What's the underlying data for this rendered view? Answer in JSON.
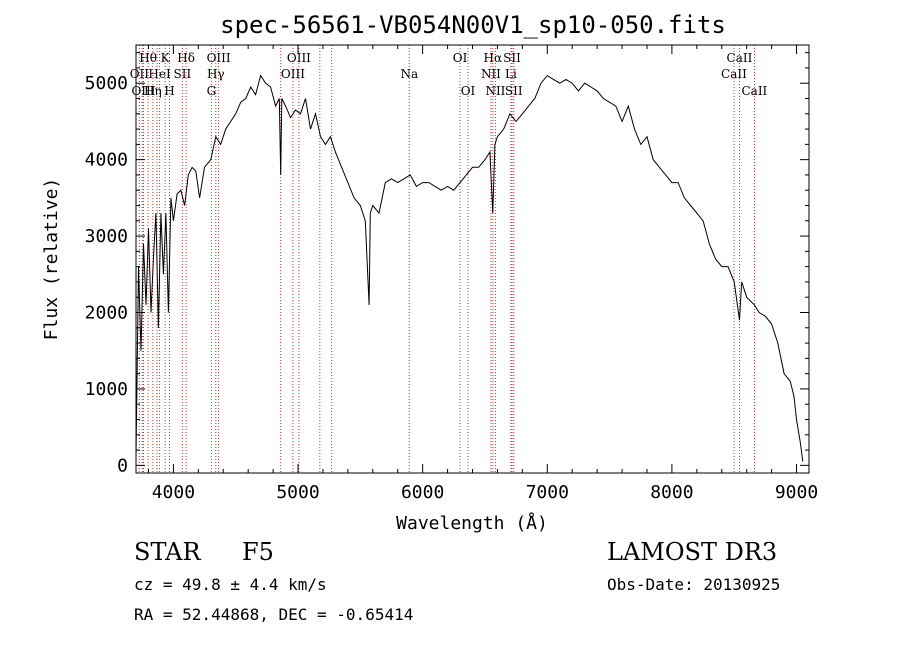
{
  "chart_data": {
    "type": "line",
    "title": "spec-56561-VB054N00V1_sp10-050.fits",
    "xlabel": "Wavelength (Å)",
    "ylabel": "Flux (relative)",
    "xlim": [
      3700,
      9100
    ],
    "ylim": [
      -100,
      5500
    ],
    "xticks": [
      4000,
      5000,
      6000,
      7000,
      8000,
      9000
    ],
    "yticks": [
      0,
      1000,
      2000,
      3000,
      4000,
      5000
    ],
    "series": [
      {
        "name": "flux",
        "x": [
          3700,
          3720,
          3740,
          3760,
          3780,
          3800,
          3820,
          3840,
          3860,
          3880,
          3900,
          3920,
          3940,
          3960,
          3980,
          4000,
          4030,
          4060,
          4090,
          4120,
          4150,
          4180,
          4210,
          4250,
          4300,
          4340,
          4380,
          4420,
          4460,
          4500,
          4540,
          4580,
          4620,
          4660,
          4700,
          4740,
          4780,
          4820,
          4850,
          4861,
          4870,
          4900,
          4940,
          4980,
          5020,
          5060,
          5100,
          5140,
          5180,
          5220,
          5260,
          5300,
          5350,
          5400,
          5450,
          5500,
          5540,
          5570,
          5580,
          5600,
          5650,
          5700,
          5750,
          5800,
          5850,
          5900,
          5950,
          6000,
          6050,
          6100,
          6150,
          6200,
          6250,
          6300,
          6350,
          6400,
          6450,
          6500,
          6540,
          6563,
          6580,
          6600,
          6650,
          6700,
          6750,
          6800,
          6850,
          6900,
          6950,
          7000,
          7050,
          7100,
          7150,
          7200,
          7250,
          7300,
          7350,
          7400,
          7450,
          7500,
          7550,
          7600,
          7650,
          7700,
          7750,
          7800,
          7850,
          7900,
          7950,
          8000,
          8050,
          8100,
          8150,
          8200,
          8250,
          8300,
          8350,
          8400,
          8450,
          8500,
          8542,
          8560,
          8600,
          8662,
          8700,
          8750,
          8800,
          8850,
          8900,
          8950,
          8980,
          9000,
          9030,
          9050
        ],
        "y": [
          100,
          2600,
          1500,
          2900,
          2100,
          3100,
          2000,
          2700,
          3300,
          1800,
          3300,
          2500,
          3300,
          2000,
          3500,
          3200,
          3550,
          3600,
          3400,
          3800,
          3900,
          3850,
          3500,
          3900,
          4000,
          4300,
          4200,
          4400,
          4500,
          4600,
          4750,
          4800,
          4950,
          4850,
          5100,
          5000,
          4950,
          4700,
          4800,
          3800,
          4800,
          4700,
          4550,
          4650,
          4600,
          4800,
          4400,
          4600,
          4300,
          4200,
          4300,
          4100,
          3900,
          3700,
          3500,
          3400,
          3200,
          2100,
          3300,
          3400,
          3300,
          3700,
          3750,
          3700,
          3750,
          3800,
          3650,
          3700,
          3700,
          3650,
          3600,
          3650,
          3600,
          3700,
          3800,
          3900,
          3900,
          4000,
          4100,
          3300,
          4200,
          4300,
          4400,
          4600,
          4500,
          4600,
          4700,
          4800,
          5000,
          5100,
          5050,
          5000,
          5050,
          5000,
          4900,
          5000,
          4950,
          4900,
          4800,
          4750,
          4700,
          4500,
          4700,
          4400,
          4200,
          4300,
          4000,
          3900,
          3800,
          3700,
          3700,
          3500,
          3400,
          3300,
          3200,
          2900,
          2700,
          2600,
          2600,
          2400,
          1900,
          2400,
          2200,
          2100,
          2000,
          1950,
          1850,
          1600,
          1200,
          1100,
          900,
          600,
          300,
          50
        ]
      }
    ],
    "lines": [
      {
        "name": "Hθ",
        "wave": 3797,
        "row": 1
      },
      {
        "name": "OII",
        "wave": 3727,
        "row": 2
      },
      {
        "name": "OIII",
        "wave": 3760,
        "row": 3
      },
      {
        "name": "Hη",
        "wave": 3835,
        "row": 3
      },
      {
        "name": "HeI",
        "wave": 3889,
        "row": 2
      },
      {
        "name": "K",
        "wave": 3934,
        "row": 1
      },
      {
        "name": "H",
        "wave": 3969,
        "row": 3
      },
      {
        "name": "SII",
        "wave": 4072,
        "row": 2
      },
      {
        "name": "Hδ",
        "wave": 4102,
        "row": 1
      },
      {
        "name": "OIII",
        "wave": 4363,
        "row": 1
      },
      {
        "name": "Hγ",
        "wave": 4340,
        "row": 2
      },
      {
        "name": "G",
        "wave": 4305,
        "row": 3
      },
      {
        "name": "OIII",
        "wave": 5007,
        "row": 1
      },
      {
        "name": "OIII",
        "wave": 4959,
        "row": 2
      },
      {
        "name": "Na",
        "wave": 5893,
        "row": 2
      },
      {
        "name": "OI",
        "wave": 6300,
        "row": 1
      },
      {
        "name": "OI",
        "wave": 6364,
        "row": 3
      },
      {
        "name": "Hα",
        "wave": 6563,
        "row": 1
      },
      {
        "name": "NII",
        "wave": 6548,
        "row": 2
      },
      {
        "name": "NII",
        "wave": 6584,
        "row": 3
      },
      {
        "name": "SII",
        "wave": 6717,
        "row": 1
      },
      {
        "name": "Li",
        "wave": 6708,
        "row": 2
      },
      {
        "name": "SII",
        "wave": 6731,
        "row": 3
      },
      {
        "name": "CaII",
        "wave": 8542,
        "row": 1
      },
      {
        "name": "CaII",
        "wave": 8498,
        "row": 2
      },
      {
        "name": "CaII",
        "wave": 8662,
        "row": 3
      }
    ],
    "extra_line_waves": [
      3869,
      3750,
      4861,
      5175,
      5270
    ]
  },
  "info": {
    "class": "STAR",
    "subclass": "F5",
    "survey": "LAMOST DR3",
    "redshift": "cz = 49.8 ± 4.4 km/s",
    "obsdate": "Obs-Date: 20130925",
    "coords": "RA =  52.44868, DEC =  -0.65414"
  },
  "colors": {
    "line_marker": "#c0392b",
    "spectrum": "#000000",
    "axes": "#000000"
  }
}
